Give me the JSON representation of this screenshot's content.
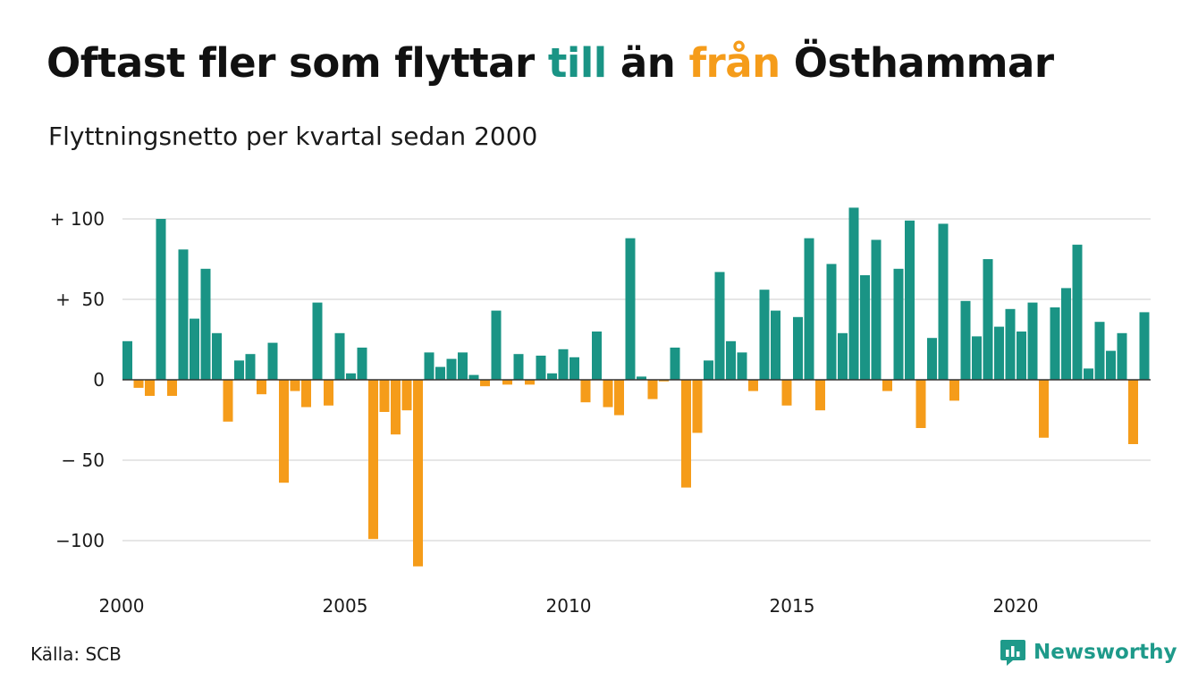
{
  "header": {
    "title_parts": [
      {
        "text": "Oftast fler som flyttar ",
        "color": "#111111"
      },
      {
        "text": "till",
        "color": "#1a9485"
      },
      {
        "text": " än ",
        "color": "#111111"
      },
      {
        "text": "från",
        "color": "#f59c1a"
      },
      {
        "text": " Östhammar",
        "color": "#111111"
      }
    ],
    "subtitle": "Flyttningsnetto per kvartal sedan 2000"
  },
  "footer": {
    "source": "Källa: SCB",
    "brand": "Newsworthy",
    "brand_icon": "bar-chart-speech-bubble-icon"
  },
  "colors": {
    "positive": "#1a9485",
    "negative": "#f59c1a",
    "grid": "#dddddd",
    "zero_line": "#333333"
  },
  "chart_data": {
    "type": "bar",
    "title": "Oftast fler som flyttar till än från Östhammar",
    "subtitle": "Flyttningsnetto per kvartal sedan 2000",
    "xlabel": "",
    "ylabel": "",
    "ylim": [
      -125,
      110
    ],
    "grid": true,
    "legend": "none",
    "y_ticks": [
      {
        "value": 100,
        "label": "+ 100"
      },
      {
        "value": 50,
        "label": "+  50"
      },
      {
        "value": 0,
        "label": "0"
      },
      {
        "value": -50,
        "label": "− 50"
      },
      {
        "value": -100,
        "label": "−100"
      }
    ],
    "x_ticks": [
      {
        "label": "2000",
        "index": 0
      },
      {
        "label": "2005",
        "index": 20
      },
      {
        "label": "2010",
        "index": 40
      },
      {
        "label": "2015",
        "index": 60
      },
      {
        "label": "2020",
        "index": 80
      }
    ],
    "start_period": "2000 Q1",
    "frequency": "quarterly",
    "values": [
      24,
      -5,
      -10,
      100,
      -10,
      81,
      38,
      69,
      29,
      -26,
      12,
      16,
      -9,
      23,
      -64,
      -7,
      -17,
      48,
      -16,
      29,
      4,
      20,
      -99,
      -20,
      -34,
      -19,
      -116,
      17,
      8,
      13,
      17,
      3,
      -4,
      43,
      -3,
      16,
      -3,
      15,
      4,
      19,
      14,
      -14,
      30,
      -17,
      -22,
      88,
      2,
      -12,
      -1,
      20,
      -67,
      -33,
      12,
      67,
      24,
      17,
      -7,
      56,
      43,
      -16,
      39,
      88,
      -19,
      72,
      29,
      107,
      65,
      87,
      -7,
      69,
      99,
      -30,
      26,
      97,
      -13,
      49,
      27,
      75,
      33,
      44,
      30,
      48,
      -36,
      45,
      57,
      84,
      7,
      36,
      18,
      29,
      -40,
      42
    ]
  }
}
